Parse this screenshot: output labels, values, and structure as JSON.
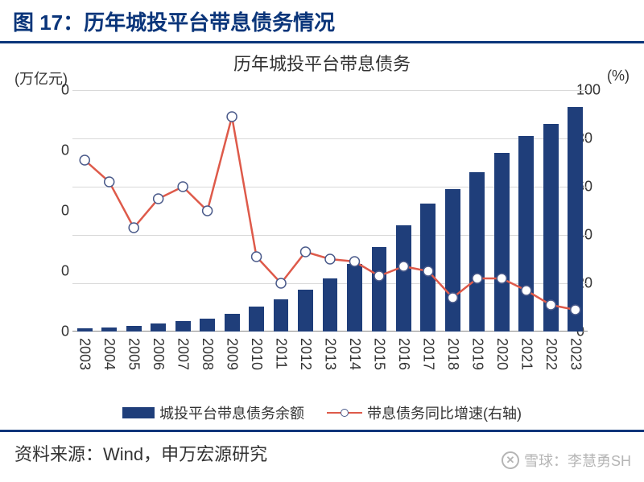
{
  "header": {
    "title": "图 17：历年城投平台带息债务情况"
  },
  "chart": {
    "title": "历年城投平台带息债务",
    "type": "bar+line",
    "left_axis": {
      "unit": "(万亿元)",
      "ticks": [
        0,
        0,
        0,
        0,
        0
      ],
      "ylim_min": 0,
      "ylim_max": 100
    },
    "right_axis": {
      "unit": "(%)",
      "ticks": [
        0,
        20,
        40,
        60,
        80,
        100
      ],
      "ylim_min": 0,
      "ylim_max": 100
    },
    "categories": [
      "2003",
      "2004",
      "2005",
      "2006",
      "2007",
      "2008",
      "2009",
      "2010",
      "2011",
      "2012",
      "2013",
      "2014",
      "2015",
      "2016",
      "2017",
      "2018",
      "2019",
      "2020",
      "2021",
      "2022",
      "2023"
    ],
    "bar": {
      "label": "城投平台带息债务余额",
      "color": "#1f3e7a",
      "width_ratio": 0.62,
      "values_rel": [
        1.2,
        1.8,
        2.5,
        3.5,
        4.5,
        5.5,
        7.5,
        10.5,
        13.5,
        17.5,
        22,
        28,
        35,
        44,
        53,
        59,
        66,
        74,
        81,
        86,
        93
      ]
    },
    "line": {
      "label": "带息债务同比增速(右轴)",
      "color": "#de5a4a",
      "marker_fill": "#ffffff",
      "marker_stroke": "#4a5a8a",
      "marker_size": 6,
      "line_width": 2.5,
      "values": [
        71,
        62,
        43,
        55,
        60,
        50,
        89,
        31,
        20,
        33,
        30,
        29,
        23,
        27,
        25,
        14,
        22,
        22,
        17,
        11,
        9
      ]
    },
    "grid_color": "#d9d9d9",
    "background_color": "#ffffff"
  },
  "footer": {
    "text": "资料来源：Wind，申万宏源研究"
  },
  "watermark": {
    "text": "雪球：李慧勇SH",
    "icon_glyph": "✕"
  }
}
